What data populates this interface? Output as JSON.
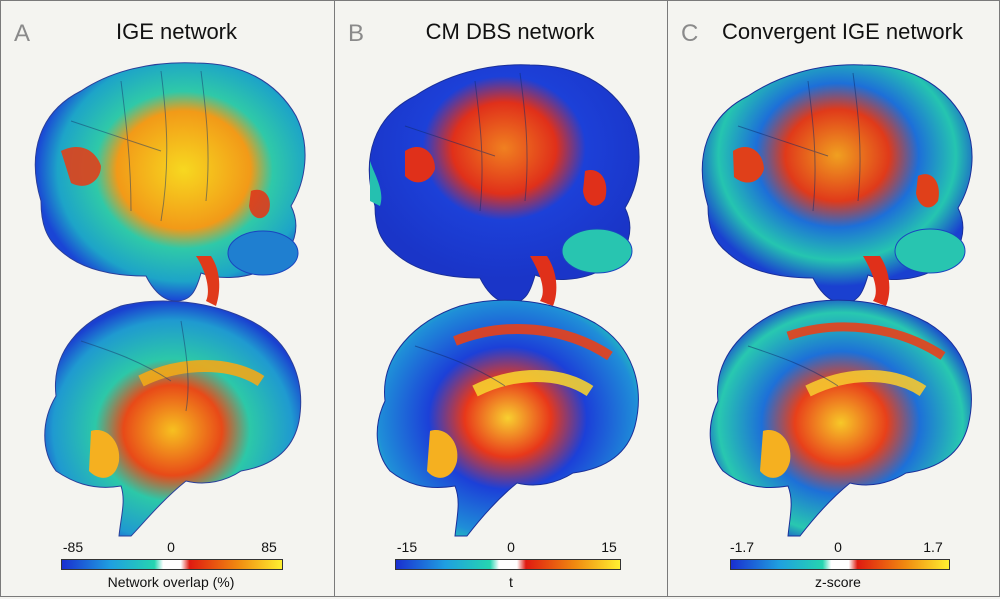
{
  "panels": [
    {
      "letter": "A",
      "title": "IGE network",
      "colorbar": {
        "min": "-85",
        "mid": "0",
        "max": "85",
        "label": "Network overlap (%)"
      }
    },
    {
      "letter": "B",
      "title": "CM DBS network",
      "colorbar": {
        "min": "-15",
        "mid": "0",
        "max": "15",
        "label": "t"
      }
    },
    {
      "letter": "C",
      "title": "Convergent IGE network",
      "colorbar": {
        "min": "-1.7",
        "mid": "0",
        "max": "1.7",
        "label": "z-score"
      }
    }
  ],
  "colors": {
    "negative_low": "#1a3fd9",
    "negative_high": "#20d0b0",
    "positive_low": "#e02010",
    "positive_high": "#ffee30",
    "background": "#f4f4f0"
  }
}
